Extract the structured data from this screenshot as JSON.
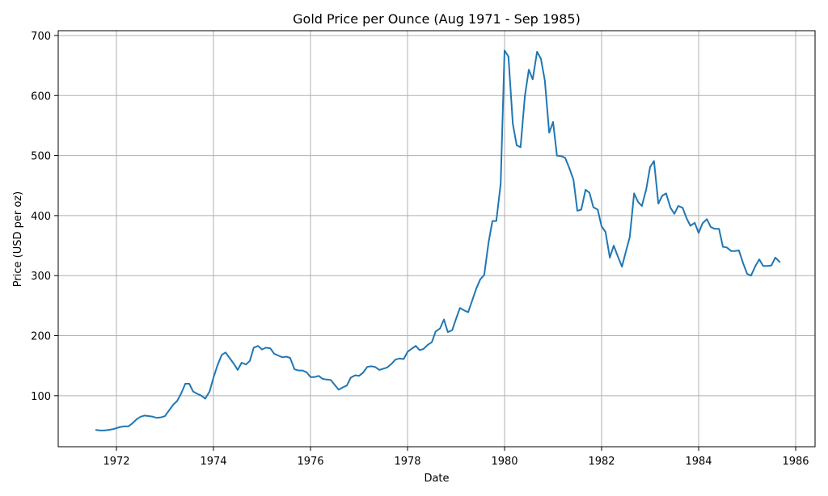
{
  "chart_data": {
    "type": "line",
    "title": "Gold Price per Ounce (Aug 1971 - Sep 1985)",
    "xlabel": "Date",
    "ylabel": "Price (USD per oz)",
    "xlim": [
      1970.8,
      1986.4
    ],
    "ylim": [
      15,
      708
    ],
    "x_ticks": [
      1972,
      1974,
      1976,
      1978,
      1980,
      1982,
      1984,
      1986
    ],
    "y_ticks": [
      100,
      200,
      300,
      400,
      500,
      600,
      700
    ],
    "grid": true,
    "colors": {
      "series": "#1f77b4"
    },
    "series": [
      {
        "x": [
          1971.58,
          1971.67,
          1971.75,
          1971.83,
          1971.92,
          1972.0,
          1972.08,
          1972.17,
          1972.25,
          1972.33,
          1972.42,
          1972.5,
          1972.58,
          1972.67,
          1972.75,
          1972.83,
          1972.92,
          1973.0,
          1973.08,
          1973.17,
          1973.25,
          1973.33,
          1973.42,
          1973.5,
          1973.58,
          1973.67,
          1973.75,
          1973.83,
          1973.92,
          1974.0,
          1974.08,
          1974.17,
          1974.25,
          1974.33,
          1974.42,
          1974.5,
          1974.58,
          1974.67,
          1974.75,
          1974.83,
          1974.92,
          1975.0,
          1975.08,
          1975.17,
          1975.25,
          1975.33,
          1975.42,
          1975.5,
          1975.58,
          1975.67,
          1975.75,
          1975.83,
          1975.92,
          1976.0,
          1976.08,
          1976.17,
          1976.25,
          1976.33,
          1976.42,
          1976.5,
          1976.58,
          1976.67,
          1976.75,
          1976.83,
          1976.92,
          1977.0,
          1977.08,
          1977.17,
          1977.25,
          1977.33,
          1977.42,
          1977.5,
          1977.58,
          1977.67,
          1977.75,
          1977.83,
          1977.92,
          1978.0,
          1978.08,
          1978.17,
          1978.25,
          1978.33,
          1978.42,
          1978.5,
          1978.58,
          1978.67,
          1978.75,
          1978.83,
          1978.92,
          1979.0,
          1979.08,
          1979.17,
          1979.25,
          1979.33,
          1979.42,
          1979.5,
          1979.58,
          1979.67,
          1979.75,
          1979.83,
          1979.92,
          1980.0,
          1980.08,
          1980.17,
          1980.25,
          1980.33,
          1980.42,
          1980.5,
          1980.58,
          1980.67,
          1980.75,
          1980.83,
          1980.92,
          1981.0,
          1981.08,
          1981.17,
          1981.25,
          1981.33,
          1981.42,
          1981.5,
          1981.58,
          1981.67,
          1981.75,
          1981.83,
          1981.92,
          1982.0,
          1982.08,
          1982.17,
          1982.25,
          1982.33,
          1982.42,
          1982.5,
          1982.58,
          1982.67,
          1982.75,
          1982.83,
          1982.92,
          1983.0,
          1983.08,
          1983.17,
          1983.25,
          1983.33,
          1983.42,
          1983.5,
          1983.58,
          1983.67,
          1983.75,
          1983.83,
          1983.92,
          1984.0,
          1984.08,
          1984.17,
          1984.25,
          1984.33,
          1984.42,
          1984.5,
          1984.58,
          1984.67,
          1984.75,
          1984.83,
          1984.92,
          1985.0,
          1985.08,
          1985.17,
          1985.25,
          1985.33,
          1985.42,
          1985.5,
          1985.58,
          1985.67
        ],
        "values": [
          43,
          42,
          42,
          43,
          44,
          46,
          48,
          49,
          49,
          54,
          61,
          65,
          67,
          66,
          65,
          63,
          64,
          66,
          75,
          85,
          91,
          103,
          120,
          120,
          107,
          103,
          100,
          95,
          107,
          130,
          150,
          168,
          172,
          163,
          153,
          143,
          155,
          152,
          158,
          180,
          183,
          177,
          180,
          179,
          170,
          167,
          164,
          165,
          163,
          144,
          142,
          142,
          139,
          131,
          131,
          133,
          128,
          127,
          126,
          118,
          110,
          114,
          117,
          130,
          134,
          133,
          138,
          148,
          149,
          148,
          143,
          145,
          147,
          153,
          160,
          162,
          161,
          173,
          178,
          183,
          176,
          178,
          185,
          189,
          207,
          212,
          227,
          206,
          209,
          228,
          246,
          242,
          239,
          258,
          279,
          294,
          301,
          355,
          391,
          391,
          453,
          675,
          665,
          553,
          517,
          514,
          600,
          643,
          627,
          673,
          661,
          625,
          538,
          556,
          500,
          499,
          496,
          480,
          460,
          408,
          410,
          443,
          438,
          414,
          410,
          382,
          373,
          330,
          350,
          333,
          315,
          340,
          364,
          437,
          423,
          416,
          444,
          481,
          491,
          420,
          433,
          437,
          413,
          403,
          416,
          413,
          396,
          383,
          388,
          371,
          387,
          394,
          381,
          378,
          378,
          348,
          347,
          341,
          341,
          342,
          320,
          303,
          300,
          316,
          327,
          316,
          316,
          317,
          330,
          323
        ]
      }
    ]
  }
}
